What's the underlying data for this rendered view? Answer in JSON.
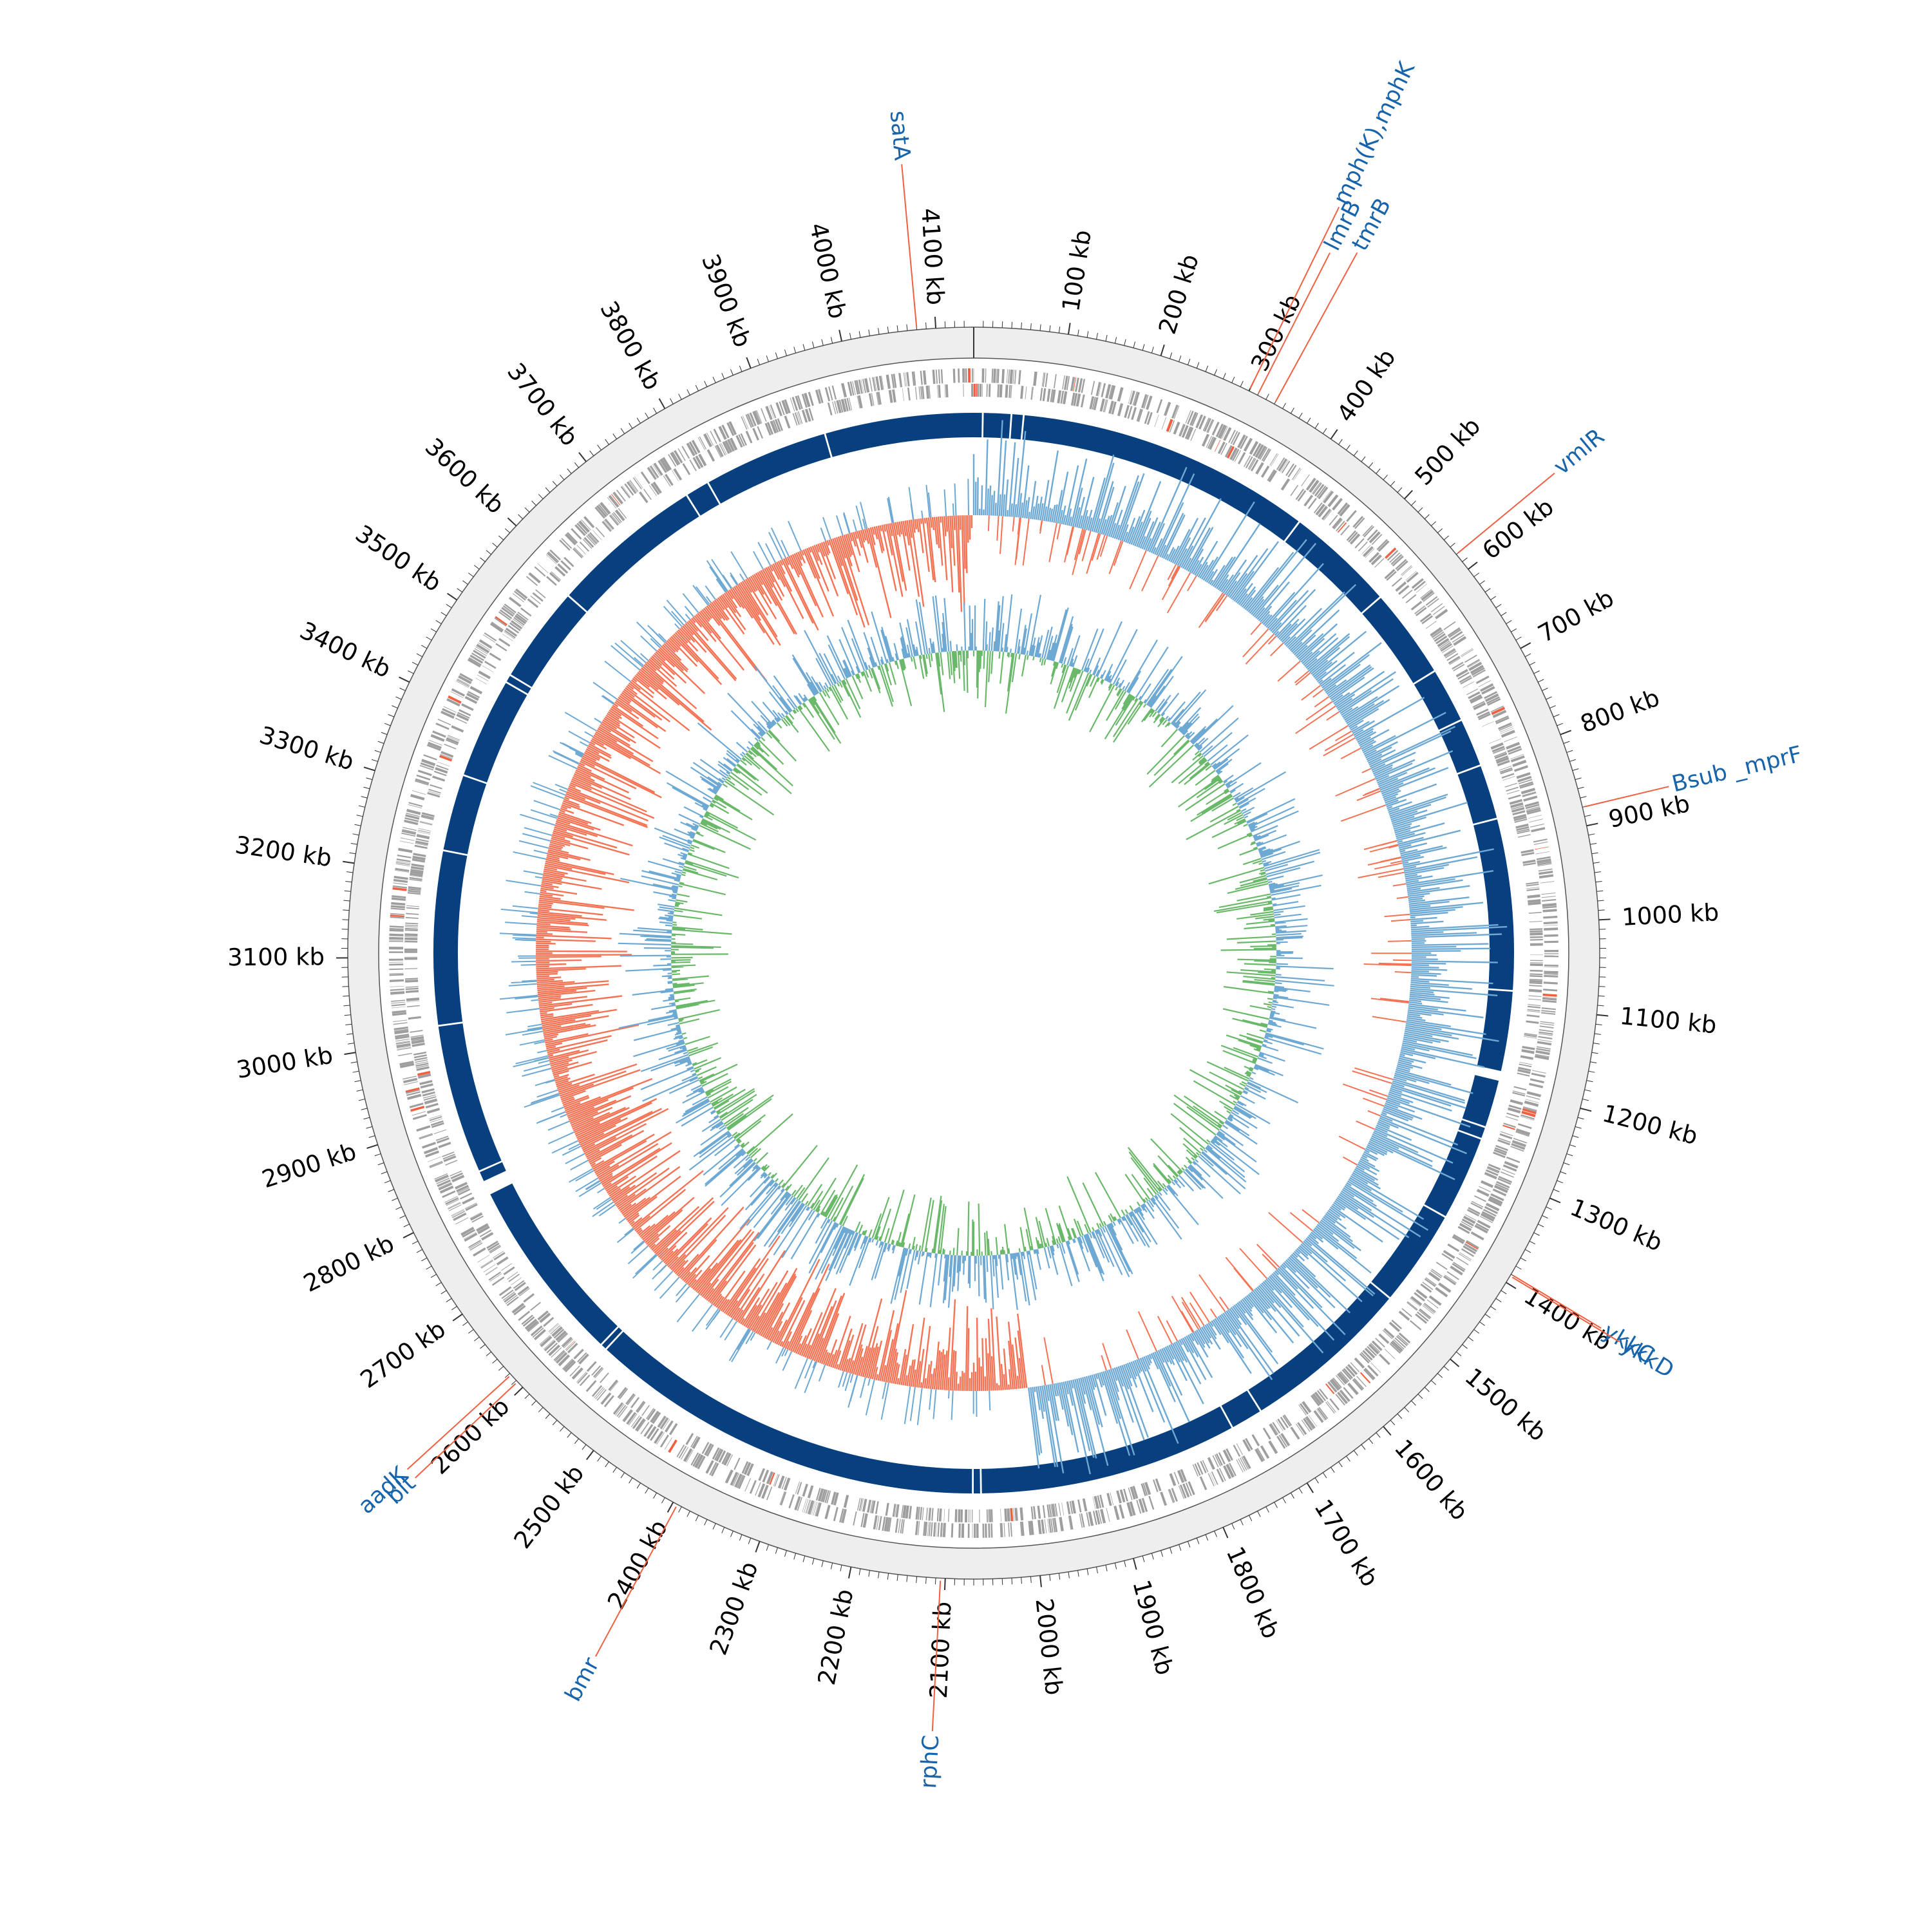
{
  "genome": {
    "total_kb": 4140,
    "tick_step_kb": 100,
    "minor_tick_step_kb": 10,
    "tick_labels": [
      "100 kb",
      "200 kb",
      "300 kb",
      "400 kb",
      "500 kb",
      "600 kb",
      "700 kb",
      "800 kb",
      "900 kb",
      "1000 kb",
      "1100 kb",
      "1200 kb",
      "1300 kb",
      "1400 kb",
      "1500 kb",
      "1600 kb",
      "1700 kb",
      "1800 kb",
      "1900 kb",
      "2000 kb",
      "2100 kb",
      "2200 kb",
      "2300 kb",
      "2400 kb",
      "2500 kb",
      "2600 kb",
      "2700 kb",
      "2800 kb",
      "2900 kb",
      "3000 kb",
      "3100 kb",
      "3200 kb",
      "3300 kb",
      "3400 kb",
      "3500 kb",
      "3600 kb",
      "3700 kb",
      "3800 kb",
      "3900 kb",
      "4000 kb",
      "4100 kb"
    ]
  },
  "genes": [
    {
      "label": "satA",
      "kb": 4080
    },
    {
      "label": "mph(K),mphK",
      "kb": 300
    },
    {
      "label": "lmrB",
      "kb": 310
    },
    {
      "label": "tmrB",
      "kb": 330
    },
    {
      "label": "vmlR",
      "kb": 580
    },
    {
      "label": "Bsub _mprF",
      "kb": 880
    },
    {
      "label": "ykkC",
      "kb": 1390
    },
    {
      "label": "ykkD",
      "kb": 1392
    },
    {
      "label": "rphC",
      "kb": 2105
    },
    {
      "label": "bmr",
      "kb": 2395
    },
    {
      "label": "aadK",
      "kb": 2618
    },
    {
      "label": "blt",
      "kb": 2608
    }
  ],
  "contig_gaps_kb": [
    10,
    45,
    60,
    425,
    560,
    672,
    740,
    800,
    868,
    1080,
    1180,
    1190,
    1250,
    1265,
    1370,
    1490,
    1700,
    1740,
    2060,
    2070,
    2562,
    2570,
    2800,
    2830,
    3015,
    3230,
    3325,
    3450,
    3460,
    3580,
    3770,
    3800,
    3955
  ],
  "colors": {
    "backbone": "#08407f",
    "feature_gray": "#9e9e9e",
    "feature_red": "#f06040",
    "skew_positive": "#6ea9d4",
    "skew_negative": "#f57355",
    "gc_content": "#6ab86a",
    "gc_variation": "#6ea9d4",
    "gene_label": "#1764ab",
    "callout_line": "#f06040",
    "outer_band": "#eeeeee"
  }
}
